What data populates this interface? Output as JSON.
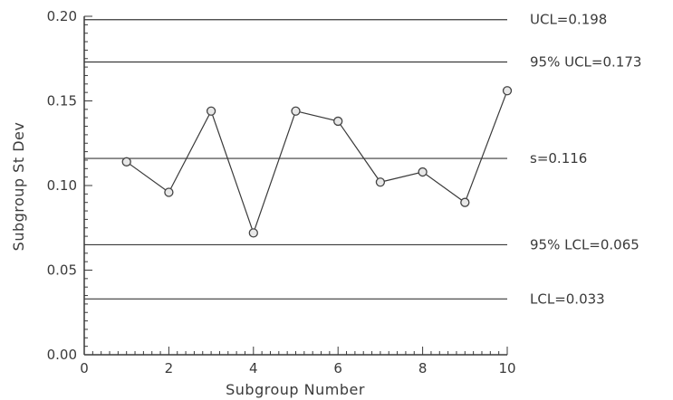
{
  "chart_data": {
    "type": "line",
    "xlabel": "Subgroup  Number",
    "ylabel": "Subgroup  St  Dev",
    "xlim": [
      0,
      10
    ],
    "ylim": [
      0,
      0.2
    ],
    "x_ticks": [
      "0",
      "2",
      "4",
      "6",
      "8",
      "10"
    ],
    "y_ticks": [
      "0.00",
      "0.05",
      "0.10",
      "0.15",
      "0.20"
    ],
    "series": [
      {
        "x": [
          1,
          2,
          3,
          4,
          5,
          6,
          7,
          8,
          9,
          10
        ],
        "values": [
          0.114,
          0.096,
          0.144,
          0.072,
          0.144,
          0.138,
          0.102,
          0.108,
          0.09,
          0.156
        ]
      }
    ],
    "reference_lines": [
      {
        "value": 0.198,
        "label": "UCL=0.198"
      },
      {
        "value": 0.173,
        "label": "95%  UCL=0.173"
      },
      {
        "value": 0.116,
        "label": "s=0.116"
      },
      {
        "value": 0.065,
        "label": "95%  LCL=0.065"
      },
      {
        "value": 0.033,
        "label": "LCL=0.033"
      }
    ],
    "grid": false,
    "colors": {
      "ink": "#3a3a3a",
      "marker": "#444444"
    }
  }
}
